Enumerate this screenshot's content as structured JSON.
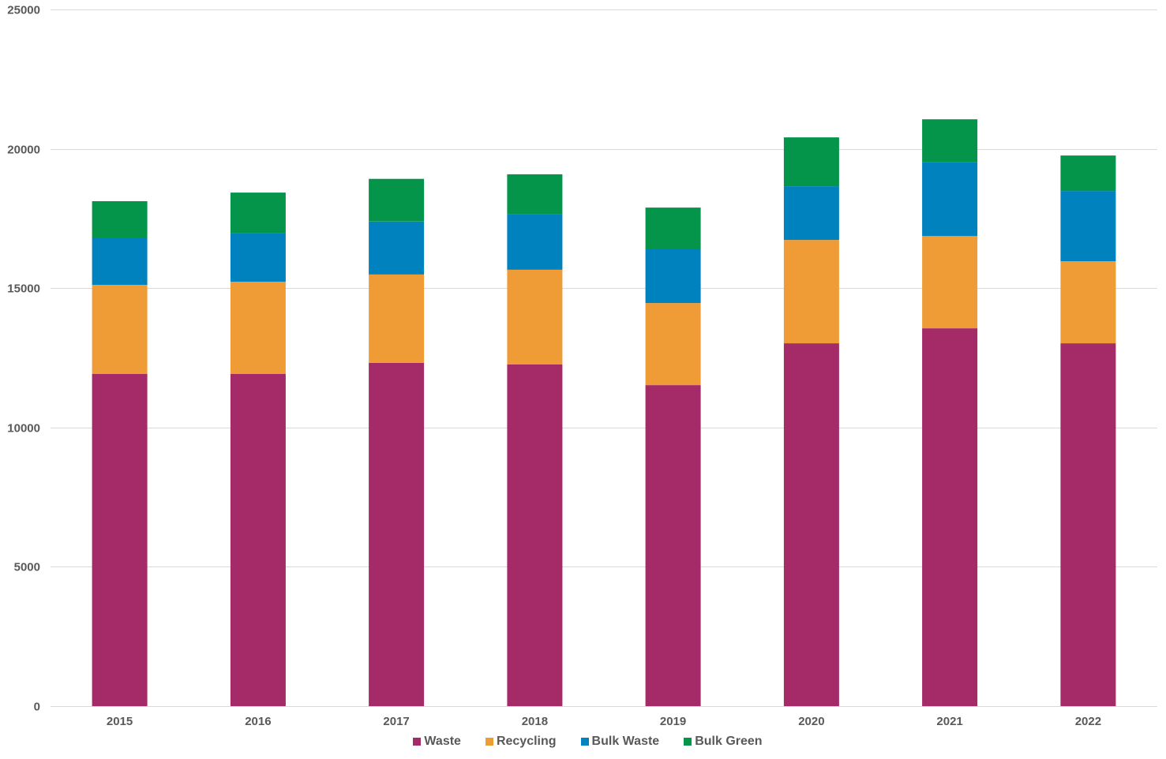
{
  "chart_data": {
    "type": "bar",
    "stacked": true,
    "title": "",
    "xlabel": "",
    "ylabel": "",
    "ylim": [
      0,
      25000
    ],
    "yticks": [
      0,
      5000,
      10000,
      15000,
      20000,
      25000
    ],
    "ytick_labels": [
      "0",
      "5000",
      "10000",
      "15000",
      "20000",
      "25000"
    ],
    "grid": true,
    "legend_position": "bottom",
    "categories": [
      "2015",
      "2016",
      "2017",
      "2018",
      "2019",
      "2020",
      "2021",
      "2022"
    ],
    "series": [
      {
        "name": "Waste",
        "color": "#A52A68",
        "values": [
          11920,
          11920,
          12320,
          12260,
          11520,
          13020,
          13560,
          13020
        ]
      },
      {
        "name": "Recycling",
        "color": "#F09C36",
        "values": [
          3200,
          3310,
          3170,
          3400,
          2945,
          3710,
          3310,
          2945
        ]
      },
      {
        "name": "Bulk Waste",
        "color": "#0082BE",
        "values": [
          1670,
          1755,
          1900,
          1980,
          1955,
          1925,
          2660,
          2520
        ]
      },
      {
        "name": "Bulk Green",
        "color": "#04954A",
        "values": [
          1330,
          1445,
          1530,
          1445,
          1470,
          1755,
          1530,
          1275
        ]
      }
    ]
  },
  "colors": {
    "grid": "#D9D9D9",
    "text": "#595959"
  }
}
